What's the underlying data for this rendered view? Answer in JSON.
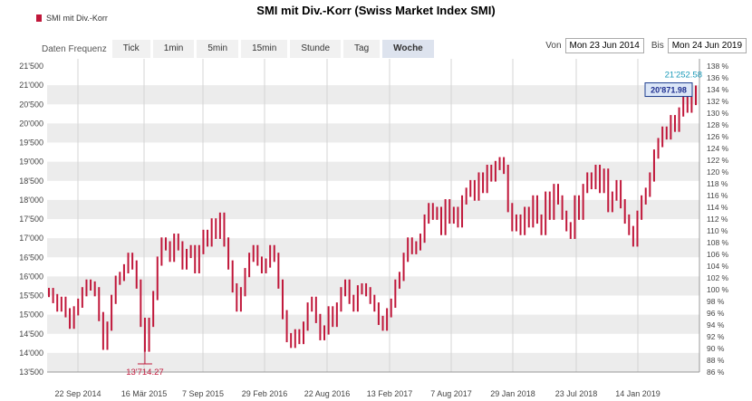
{
  "title": "SMI mit Div.-Korr (Swiss Market Index SMI)",
  "legend": "SMI mit Div.-Korr",
  "toolbar": {
    "label": "Daten Frequenz",
    "tabs": [
      "Tick",
      "1min",
      "5min",
      "15min",
      "Stunde",
      "Tag",
      "Woche"
    ],
    "active": "Woche"
  },
  "range": {
    "from_label": "Von",
    "from": "Mon 23 Jun 2014",
    "to_label": "Bis",
    "to": "Mon 24 Jun 2019"
  },
  "colors": {
    "candle": "#c0173a",
    "band": "#ececec",
    "high_label": "#1a9ab8",
    "low_label": "#c0173a",
    "callout_bg": "#dbe6f7",
    "callout_border": "#1f3f8f"
  },
  "chart_data": {
    "type": "line",
    "series": [
      {
        "name": "SMI mit Div.-Korr",
        "values": [
          15580,
          15420,
          15200,
          15350,
          15050,
          14750,
          15100,
          15300,
          15600,
          15800,
          15750,
          15600,
          14950,
          14200,
          14700,
          15400,
          15900,
          16000,
          16200,
          16500,
          16300,
          15800,
          14800,
          14150,
          14800,
          15500,
          16400,
          16900,
          16800,
          16500,
          17000,
          16800,
          16300,
          16600,
          16700,
          16200,
          16700,
          17100,
          16900,
          17400,
          17100,
          17550,
          16900,
          16300,
          15700,
          15200,
          15600,
          16100,
          16500,
          16700,
          16400,
          16200,
          16350,
          16700,
          16500,
          15800,
          15000,
          14400,
          14250,
          14500,
          14350,
          14700,
          15200,
          15350,
          14900,
          14450,
          14600,
          15100,
          14800,
          15200,
          15600,
          15800,
          15400,
          15200,
          15650,
          15700,
          15600,
          15400,
          15200,
          14850,
          14700,
          15050,
          15300,
          15800,
          16000,
          16500,
          16900,
          16700,
          16800,
          17000,
          17500,
          17800,
          17600,
          17700,
          17200,
          17900,
          17500,
          17700,
          17400,
          18000,
          18200,
          18400,
          18100,
          18600,
          18300,
          18800,
          18600,
          18900,
          19000,
          18800,
          17800,
          17300,
          17500,
          17200,
          17700,
          17400,
          18000,
          17500,
          17200,
          18100,
          17600,
          18300,
          18000,
          17600,
          17300,
          17100,
          18000,
          17600,
          18300,
          18600,
          18400,
          18800,
          18300,
          18700,
          17800,
          18100,
          18400,
          17900,
          17500,
          17200,
          16900,
          17600,
          18000,
          18200,
          18600,
          19200,
          19500,
          19800,
          19700,
          20100,
          19900,
          20300,
          20700,
          20400,
          20600,
          20871.98
        ]
      }
    ],
    "x_ticks": [
      "22 Sep 2014",
      "16 Mär 2015",
      "7 Sep 2015",
      "29 Feb 2016",
      "22 Aug 2016",
      "13 Feb 2017",
      "7 Aug 2017",
      "29 Jan 2018",
      "23 Jul 2018",
      "14 Jan 2019"
    ],
    "y_ticks": [
      "21'500",
      "21'000",
      "20'500",
      "20'000",
      "19'500",
      "19'000",
      "18'500",
      "18'000",
      "17'500",
      "17'000",
      "16'500",
      "16'000",
      "15'500",
      "15'000",
      "14'500",
      "14'000",
      "13'500"
    ],
    "y_pct_ticks": [
      "138 %",
      "136 %",
      "134 %",
      "132 %",
      "130 %",
      "128 %",
      "126 %",
      "124 %",
      "122 %",
      "120 %",
      "118 %",
      "116 %",
      "114 %",
      "112 %",
      "110 %",
      "108 %",
      "106 %",
      "104 %",
      "102 %",
      "100 %",
      "98 %",
      "96 %",
      "94 %",
      "92 %",
      "90 %",
      "88 %",
      "86 %"
    ],
    "ylim": [
      13500,
      21500
    ],
    "high_label": "21'252.58",
    "high_value": 21252.58,
    "low_label": "13'714.27",
    "low_value": 13714.27,
    "last_label": "20'871.98",
    "last_value": 20871.98,
    "grid": true
  }
}
